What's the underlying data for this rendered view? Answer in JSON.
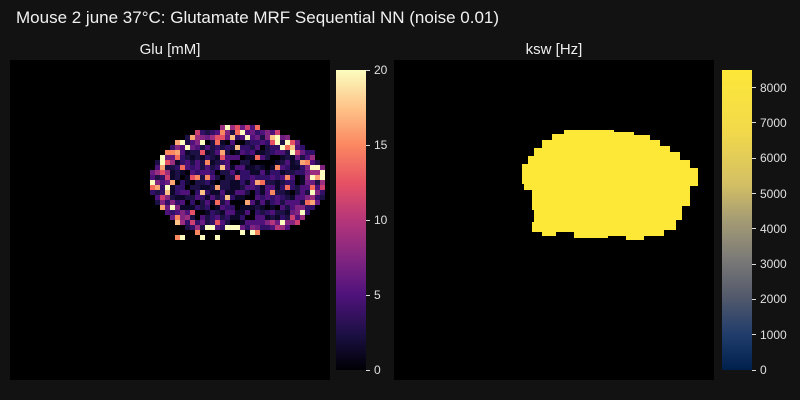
{
  "title": "Mouse 2 june 37°C: Glutamate MRF Sequential NN (noise 0.01)",
  "panels": [
    {
      "name": "glu",
      "title": "Glu [mM]",
      "colormap": "magma",
      "range": [
        0,
        20
      ],
      "ticks": [
        "0",
        "5",
        "10",
        "15",
        "20"
      ],
      "tick_values": [
        0,
        5,
        10,
        15,
        20
      ]
    },
    {
      "name": "ksw",
      "title": "ksw [Hz]",
      "colormap": "cividis",
      "range": [
        0,
        8500
      ],
      "ticks": [
        "0",
        "1000",
        "2000",
        "3000",
        "4000",
        "5000",
        "6000",
        "7000",
        "8000"
      ],
      "tick_values": [
        0,
        1000,
        2000,
        3000,
        4000,
        5000,
        6000,
        7000,
        8000
      ]
    }
  ],
  "colors": {
    "background": "#121212",
    "map_background": "#000000",
    "ksw_mask_fill": "#fde838"
  }
}
